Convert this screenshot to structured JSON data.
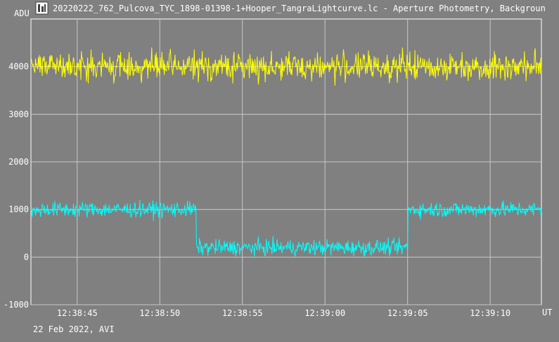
{
  "window": {
    "title": "20220222_762_Pulcova_TYC_1898-01398-1+Hooper_TangraLightcurve.lc - Aperture Photometry, Backgroun",
    "icon": "tangra-app-icon"
  },
  "colors": {
    "background": "#808080",
    "grid": "#c8c8c8",
    "frame": "#ffffff",
    "text": "#ffffff",
    "series_target": "#ffff00",
    "series_comparison": "#00ffff"
  },
  "footer": {
    "date_label": "22 Feb 2022, AVI"
  },
  "chart_data": {
    "type": "line",
    "ylabel": "ADU",
    "xlabel": "UT",
    "ylim": [
      -1000,
      5000
    ],
    "xlim_seconds": [
      42.2,
      73.1
    ],
    "y_ticks": [
      "-1000",
      "0",
      "1000",
      "2000",
      "3000",
      "4000"
    ],
    "y_tick_values": [
      -1000,
      0,
      1000,
      2000,
      3000,
      4000
    ],
    "x_ticks": [
      "12:38:45",
      "12:38:50",
      "12:38:55",
      "12:39:00",
      "12:39:05",
      "12:39:10"
    ],
    "x_tick_values_seconds": [
      45,
      50,
      55,
      60,
      65,
      70
    ],
    "grid": true,
    "series": [
      {
        "name": "",
        "color": "#ffff00",
        "baseline": 4000,
        "noise_amplitude": 250,
        "segments": [
          {
            "from": 42.2,
            "to": 73.1,
            "level": 4000
          }
        ]
      },
      {
        "name": "",
        "color": "#00ffff",
        "noise_amplitude": 140,
        "segments": [
          {
            "from": 42.2,
            "to": 52.2,
            "level": 1000
          },
          {
            "from": 52.2,
            "to": 65.0,
            "level": 200
          },
          {
            "from": 65.0,
            "to": 73.1,
            "level": 1000
          }
        ]
      }
    ]
  }
}
